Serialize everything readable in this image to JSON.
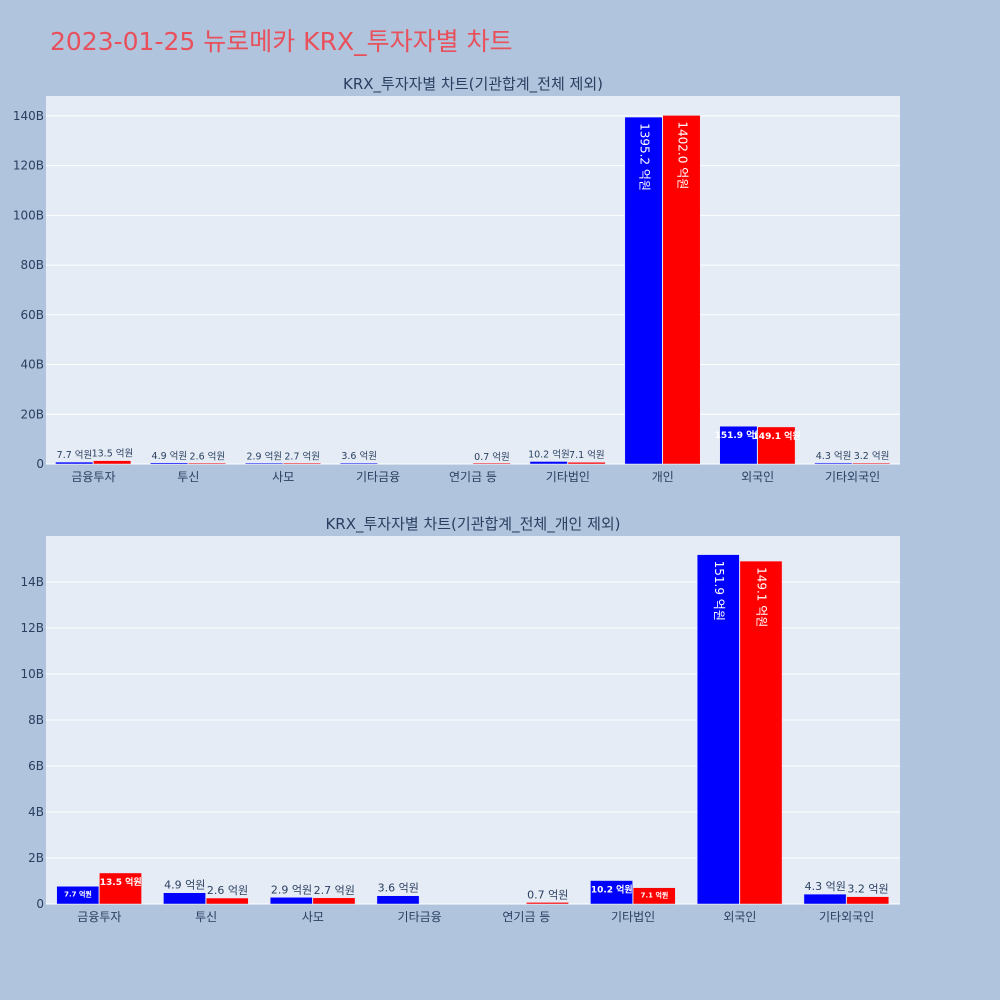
{
  "page": {
    "title": "2023-01-25 뉴로메카 KRX_투자자별 차트"
  },
  "colors": {
    "buy": "#0000ff",
    "sell": "#ff0000"
  },
  "chart_data": [
    {
      "type": "bar",
      "title": "KRX_투자자별 차트(기관합계_전체 제외)",
      "categories": [
        "금융투자",
        "투신",
        "사모",
        "기타금융",
        "연기금 등",
        "기타법인",
        "개인",
        "외국인",
        "기타외국인"
      ],
      "series": [
        {
          "values": [
            0.77,
            0.49,
            0.29,
            0.36,
            0,
            1.02,
            139.52,
            15.19,
            0.43
          ],
          "labels": [
            "7.7 억원",
            "4.9 억원",
            "2.9 억원",
            "3.6 억원",
            "",
            "10.2 억원",
            "1395.2 억원",
            "151.9 억원",
            "4.3 억원"
          ]
        },
        {
          "values": [
            1.35,
            0.26,
            0.27,
            0,
            0.07,
            0.71,
            140.2,
            14.91,
            0.32
          ],
          "labels": [
            "13.5 억원",
            "2.6 억원",
            "2.7 억원",
            "",
            "0.7 억원",
            "7.1 억원",
            "1402.0 억원",
            "149.1 억원",
            "3.2 억원"
          ]
        }
      ],
      "y_unit": "B",
      "ylim": [
        0,
        148
      ],
      "yticks": [
        0,
        20,
        40,
        60,
        80,
        100,
        120,
        140
      ],
      "ytick_labels": [
        "0",
        "20B",
        "40B",
        "60B",
        "80B",
        "100B",
        "120B",
        "140B"
      ],
      "grid": true
    },
    {
      "type": "bar",
      "title": "KRX_투자자별 차트(기관합계_전체_개인 제외)",
      "categories": [
        "금융투자",
        "투신",
        "사모",
        "기타금융",
        "연기금 등",
        "기타법인",
        "외국인",
        "기타외국인"
      ],
      "series": [
        {
          "values": [
            0.77,
            0.49,
            0.29,
            0.36,
            0,
            1.02,
            15.19,
            0.43
          ],
          "labels": [
            "7.7 억원",
            "4.9 억원",
            "2.9 억원",
            "3.6 억원",
            "",
            "10.2 억원",
            "151.9 억원",
            "4.3 억원"
          ]
        },
        {
          "values": [
            1.35,
            0.26,
            0.27,
            0,
            0.07,
            0.71,
            14.91,
            0.32
          ],
          "labels": [
            "13.5 억원",
            "2.6 억원",
            "2.7 억원",
            "",
            "0.7 억원",
            "7.1 억원",
            "149.1 억원",
            "3.2 억원"
          ]
        }
      ],
      "y_unit": "B",
      "ylim": [
        0,
        16
      ],
      "yticks": [
        0,
        2,
        4,
        6,
        8,
        10,
        12,
        14
      ],
      "ytick_labels": [
        "0",
        "2B",
        "4B",
        "6B",
        "8B",
        "10B",
        "12B",
        "14B"
      ],
      "grid": true
    }
  ]
}
